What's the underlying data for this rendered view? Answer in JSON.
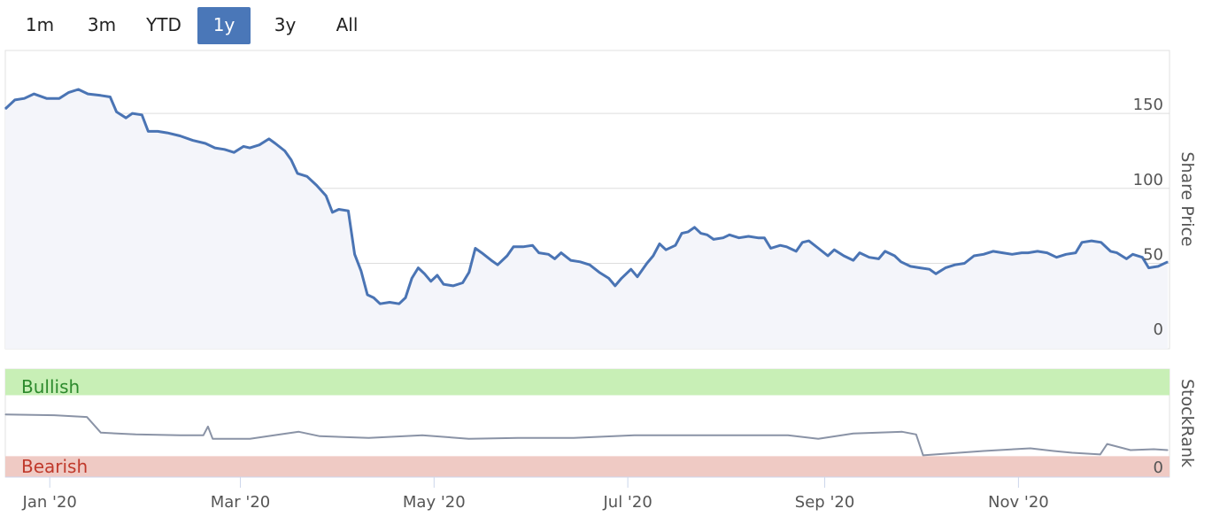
{
  "range_selector": {
    "buttons": [
      {
        "label": "1m",
        "active": false
      },
      {
        "label": "3m",
        "active": false
      },
      {
        "label": "YTD",
        "active": false
      },
      {
        "label": "1y",
        "active": true
      },
      {
        "label": "3y",
        "active": false
      },
      {
        "label": "All",
        "active": false
      }
    ],
    "active_color": "#4a77b8"
  },
  "colors": {
    "price_line": "#4a74b4",
    "price_fill": "#f4f5fa",
    "rank_line": "#8a93a6",
    "bullish_band": "#c8efb6",
    "bearish_band": "#efcac4",
    "bullish_text": "#2c8a2c",
    "bearish_text": "#c0392b"
  },
  "chart_data": [
    {
      "type": "area",
      "ylabel": "Share Price",
      "yticks": [
        0,
        50,
        100,
        150
      ],
      "ylim": [
        -7,
        192
      ],
      "x_tick_labels": [
        "Jan '20",
        "Mar '20",
        "May '20",
        "Jul '20",
        "Sep '20",
        "Nov '20"
      ],
      "x_tick_dates": [
        "2020-01-01",
        "2020-03-01",
        "2020-05-01",
        "2020-07-01",
        "2020-09-01",
        "2020-11-01"
      ],
      "xlim": [
        "2019-12-18",
        "2020-12-18"
      ],
      "grid": true,
      "series": [
        {
          "points": [
            [
              "2019-12-18",
              153
            ],
            [
              "2019-12-21",
              159
            ],
            [
              "2019-12-24",
              160
            ],
            [
              "2019-12-27",
              163
            ],
            [
              "2019-12-31",
              160
            ],
            [
              "2020-01-04",
              160
            ],
            [
              "2020-01-07",
              164
            ],
            [
              "2020-01-10",
              166
            ],
            [
              "2020-01-13",
              163
            ],
            [
              "2020-01-17",
              162
            ],
            [
              "2020-01-20",
              161
            ],
            [
              "2020-01-22",
              151
            ],
            [
              "2020-01-25",
              147
            ],
            [
              "2020-01-27",
              150
            ],
            [
              "2020-01-30",
              149
            ],
            [
              "2020-02-01",
              138
            ],
            [
              "2020-02-04",
              138
            ],
            [
              "2020-02-07",
              137
            ],
            [
              "2020-02-11",
              135
            ],
            [
              "2020-02-15",
              132
            ],
            [
              "2020-02-19",
              130
            ],
            [
              "2020-02-22",
              127
            ],
            [
              "2020-02-25",
              126
            ],
            [
              "2020-02-28",
              124
            ],
            [
              "2020-03-02",
              128
            ],
            [
              "2020-03-04",
              127
            ],
            [
              "2020-03-07",
              129
            ],
            [
              "2020-03-10",
              133
            ],
            [
              "2020-03-12",
              130
            ],
            [
              "2020-03-15",
              125
            ],
            [
              "2020-03-17",
              119
            ],
            [
              "2020-03-19",
              110
            ],
            [
              "2020-03-22",
              108
            ],
            [
              "2020-03-25",
              102
            ],
            [
              "2020-03-28",
              95
            ],
            [
              "2020-03-30",
              84
            ],
            [
              "2020-04-01",
              86
            ],
            [
              "2020-04-04",
              85
            ],
            [
              "2020-04-06",
              56
            ],
            [
              "2020-04-08",
              45
            ],
            [
              "2020-04-10",
              29
            ],
            [
              "2020-04-12",
              27
            ],
            [
              "2020-04-14",
              23
            ],
            [
              "2020-04-17",
              24
            ],
            [
              "2020-04-20",
              23
            ],
            [
              "2020-04-22",
              27
            ],
            [
              "2020-04-24",
              40
            ],
            [
              "2020-04-26",
              47
            ],
            [
              "2020-04-28",
              43
            ],
            [
              "2020-04-30",
              38
            ],
            [
              "2020-05-02",
              42
            ],
            [
              "2020-05-04",
              36
            ],
            [
              "2020-05-07",
              35
            ],
            [
              "2020-05-10",
              37
            ],
            [
              "2020-05-12",
              44
            ],
            [
              "2020-05-14",
              60
            ],
            [
              "2020-05-16",
              57
            ],
            [
              "2020-05-19",
              52
            ],
            [
              "2020-05-21",
              49
            ],
            [
              "2020-05-24",
              55
            ],
            [
              "2020-05-26",
              61
            ],
            [
              "2020-05-29",
              61
            ],
            [
              "2020-06-01",
              62
            ],
            [
              "2020-06-03",
              57
            ],
            [
              "2020-06-06",
              56
            ],
            [
              "2020-06-08",
              53
            ],
            [
              "2020-06-10",
              57
            ],
            [
              "2020-06-13",
              52
            ],
            [
              "2020-06-16",
              51
            ],
            [
              "2020-06-19",
              49
            ],
            [
              "2020-06-22",
              44
            ],
            [
              "2020-06-25",
              40
            ],
            [
              "2020-06-27",
              35
            ],
            [
              "2020-06-29",
              40
            ],
            [
              "2020-07-02",
              46
            ],
            [
              "2020-07-04",
              41
            ],
            [
              "2020-07-07",
              50
            ],
            [
              "2020-07-09",
              55
            ],
            [
              "2020-07-11",
              63
            ],
            [
              "2020-07-13",
              59
            ],
            [
              "2020-07-16",
              62
            ],
            [
              "2020-07-18",
              70
            ],
            [
              "2020-07-20",
              71
            ],
            [
              "2020-07-22",
              74
            ],
            [
              "2020-07-24",
              70
            ],
            [
              "2020-07-26",
              69
            ],
            [
              "2020-07-28",
              66
            ],
            [
              "2020-07-31",
              67
            ],
            [
              "2020-08-02",
              69
            ],
            [
              "2020-08-05",
              67
            ],
            [
              "2020-08-08",
              68
            ],
            [
              "2020-08-11",
              67
            ],
            [
              "2020-08-13",
              67
            ],
            [
              "2020-08-15",
              60
            ],
            [
              "2020-08-18",
              62
            ],
            [
              "2020-08-20",
              61
            ],
            [
              "2020-08-23",
              58
            ],
            [
              "2020-08-25",
              64
            ],
            [
              "2020-08-27",
              65
            ],
            [
              "2020-08-30",
              60
            ],
            [
              "2020-09-02",
              55
            ],
            [
              "2020-09-04",
              59
            ],
            [
              "2020-09-07",
              55
            ],
            [
              "2020-09-10",
              52
            ],
            [
              "2020-09-12",
              57
            ],
            [
              "2020-09-15",
              54
            ],
            [
              "2020-09-18",
              53
            ],
            [
              "2020-09-20",
              58
            ],
            [
              "2020-09-23",
              55
            ],
            [
              "2020-09-25",
              51
            ],
            [
              "2020-09-28",
              48
            ],
            [
              "2020-10-01",
              47
            ],
            [
              "2020-10-04",
              46
            ],
            [
              "2020-10-06",
              43
            ],
            [
              "2020-10-09",
              47
            ],
            [
              "2020-10-12",
              49
            ],
            [
              "2020-10-15",
              50
            ],
            [
              "2020-10-18",
              55
            ],
            [
              "2020-10-21",
              56
            ],
            [
              "2020-10-24",
              58
            ],
            [
              "2020-10-27",
              57
            ],
            [
              "2020-10-30",
              56
            ],
            [
              "2020-11-02",
              57
            ],
            [
              "2020-11-04",
              57
            ],
            [
              "2020-11-07",
              58
            ],
            [
              "2020-11-10",
              57
            ],
            [
              "2020-11-13",
              54
            ],
            [
              "2020-11-16",
              56
            ],
            [
              "2020-11-19",
              57
            ],
            [
              "2020-11-21",
              64
            ],
            [
              "2020-11-24",
              65
            ],
            [
              "2020-11-27",
              64
            ],
            [
              "2020-11-30",
              58
            ],
            [
              "2020-12-02",
              57
            ],
            [
              "2020-12-05",
              53
            ],
            [
              "2020-12-07",
              56
            ],
            [
              "2020-12-10",
              54
            ],
            [
              "2020-12-12",
              47
            ],
            [
              "2020-12-15",
              48
            ],
            [
              "2020-12-18",
              51
            ]
          ]
        }
      ]
    },
    {
      "type": "line",
      "ylabel": "StockRank",
      "yticks": [
        0
      ],
      "ylim": [
        -14,
        110
      ],
      "zones": [
        {
          "label": "Bullish",
          "from": 80,
          "to": 110
        },
        {
          "label": "Bearish",
          "from": -14,
          "to": 10
        }
      ],
      "series": [
        {
          "points": [
            [
              "2019-12-18",
              58
            ],
            [
              "2020-01-08",
              57
            ],
            [
              "2020-01-22",
              55
            ],
            [
              "2020-01-28",
              37
            ],
            [
              "2020-02-12",
              35
            ],
            [
              "2020-03-02",
              34
            ],
            [
              "2020-03-12",
              34
            ],
            [
              "2020-03-14",
              44
            ],
            [
              "2020-03-16",
              30
            ],
            [
              "2020-04-01",
              30
            ],
            [
              "2020-04-14",
              35
            ],
            [
              "2020-04-22",
              38
            ],
            [
              "2020-05-01",
              33
            ],
            [
              "2020-05-22",
              31
            ],
            [
              "2020-06-14",
              34
            ],
            [
              "2020-07-04",
              30
            ],
            [
              "2020-07-25",
              31
            ],
            [
              "2020-08-18",
              31
            ],
            [
              "2020-09-13",
              34
            ],
            [
              "2020-10-06",
              34
            ],
            [
              "2020-10-25",
              34
            ],
            [
              "2020-11-18",
              34
            ],
            [
              "2020-12-01",
              30
            ],
            [
              "2020-12-16",
              36
            ],
            [
              "2021-01-06",
              38
            ],
            [
              "2021-01-12",
              35
            ],
            [
              "2021-01-15",
              11
            ],
            [
              "2021-02-10",
              16
            ],
            [
              "2021-03-02",
              19
            ],
            [
              "2021-03-12",
              16
            ],
            [
              "2021-03-20",
              14
            ],
            [
              "2021-04-01",
              12
            ],
            [
              "2021-04-04",
              24
            ],
            [
              "2021-04-14",
              17
            ],
            [
              "2021-04-24",
              18
            ],
            [
              "2021-04-30",
              17
            ]
          ]
        }
      ]
    }
  ]
}
